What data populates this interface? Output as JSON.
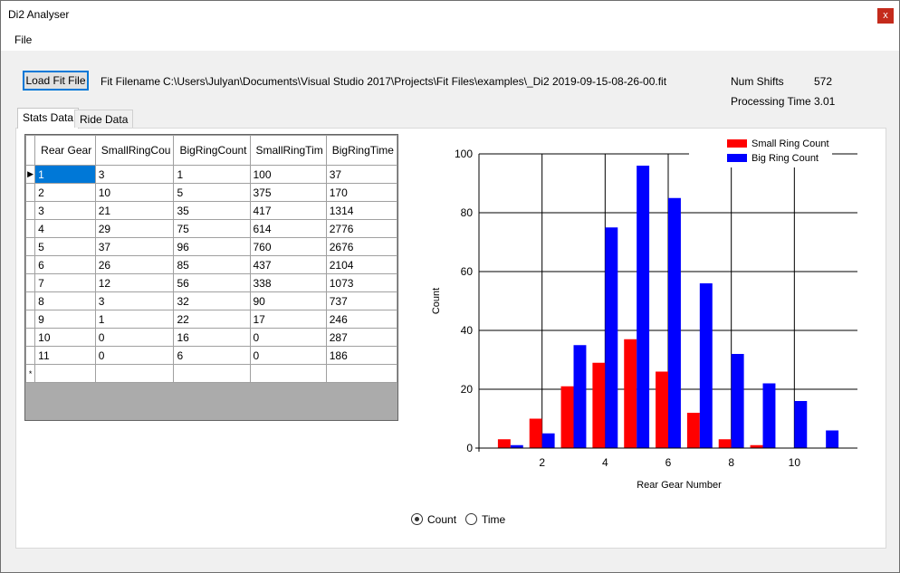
{
  "window": {
    "title": "Di2 Analyser",
    "close_glyph": "x"
  },
  "menu": {
    "file": "File"
  },
  "toolbar": {
    "load_button": "Load Fit File",
    "fit_filename_label": "Fit Filename",
    "fit_filename_value": "C:\\Users\\Julyan\\Documents\\Visual Studio 2017\\Projects\\Fit Files\\examples\\_Di2 2019-09-15-08-26-00.fit",
    "num_shifts_label": "Num Shifts",
    "num_shifts_value": "572",
    "processing_time_label": "Processing Time",
    "processing_time_value": "3.01"
  },
  "tabs": [
    {
      "label": "Stats Data",
      "active": true
    },
    {
      "label": "Ride Data",
      "active": false
    }
  ],
  "grid": {
    "columns": [
      "Rear Gear",
      "SmallRingCou",
      "BigRingCount",
      "SmallRingTim",
      "BigRingTime"
    ],
    "rows": [
      [
        "1",
        "3",
        "1",
        "100",
        "37"
      ],
      [
        "2",
        "10",
        "5",
        "375",
        "170"
      ],
      [
        "3",
        "21",
        "35",
        "417",
        "1314"
      ],
      [
        "4",
        "29",
        "75",
        "614",
        "2776"
      ],
      [
        "5",
        "37",
        "96",
        "760",
        "2676"
      ],
      [
        "6",
        "26",
        "85",
        "437",
        "2104"
      ],
      [
        "7",
        "12",
        "56",
        "338",
        "1073"
      ],
      [
        "8",
        "3",
        "32",
        "90",
        "737"
      ],
      [
        "9",
        "1",
        "22",
        "17",
        "246"
      ],
      [
        "10",
        "0",
        "16",
        "0",
        "287"
      ],
      [
        "11",
        "0",
        "6",
        "0",
        "186"
      ]
    ],
    "current_row_glyph": "▶",
    "new_row_glyph": "*"
  },
  "chart_data": {
    "type": "bar",
    "title": "",
    "xlabel": "Rear Gear Number",
    "ylabel": "Count",
    "x": [
      1,
      2,
      3,
      4,
      5,
      6,
      7,
      8,
      9,
      10,
      11
    ],
    "series": [
      {
        "name": "Small Ring Count",
        "color": "#ff0000",
        "values": [
          3,
          10,
          21,
          29,
          37,
          26,
          12,
          3,
          1,
          0,
          0
        ]
      },
      {
        "name": "Big Ring Count",
        "color": "#0000ff",
        "values": [
          1,
          5,
          35,
          75,
          96,
          85,
          56,
          32,
          22,
          16,
          6
        ]
      }
    ],
    "xticks": [
      2,
      4,
      6,
      8,
      10
    ],
    "yticks": [
      0,
      20,
      40,
      60,
      80,
      100
    ],
    "xlim": [
      0,
      12
    ],
    "ylim": [
      0,
      100
    ],
    "grid": true,
    "legend": "top-right"
  },
  "display_mode": {
    "options": [
      {
        "label": "Count",
        "selected": true
      },
      {
        "label": "Time",
        "selected": false
      }
    ]
  }
}
